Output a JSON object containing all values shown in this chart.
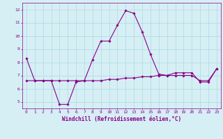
{
  "xlabel": "Windchill (Refroidissement éolien,°C)",
  "ylabel": "",
  "xlim": [
    -0.5,
    23.5
  ],
  "ylim": [
    4.5,
    12.5
  ],
  "yticks": [
    5,
    6,
    7,
    8,
    9,
    10,
    11,
    12
  ],
  "xticks": [
    0,
    1,
    2,
    3,
    4,
    5,
    6,
    7,
    8,
    9,
    10,
    11,
    12,
    13,
    14,
    15,
    16,
    17,
    18,
    19,
    20,
    21,
    22,
    23
  ],
  "line1_x": [
    0,
    1,
    2,
    3,
    4,
    5,
    6,
    7,
    8,
    9,
    10,
    11,
    12,
    13,
    14,
    15,
    16,
    17,
    18,
    19,
    20,
    21,
    22,
    23
  ],
  "line1_y": [
    8.3,
    6.6,
    6.6,
    6.6,
    4.8,
    4.8,
    6.5,
    6.6,
    8.2,
    9.6,
    9.6,
    10.8,
    11.9,
    11.7,
    10.3,
    8.6,
    7.1,
    7.0,
    7.2,
    7.2,
    7.2,
    6.5,
    6.5,
    7.5
  ],
  "line2_x": [
    0,
    1,
    2,
    3,
    4,
    5,
    6,
    7,
    8,
    9,
    10,
    11,
    12,
    13,
    14,
    15,
    16,
    17,
    18,
    19,
    20,
    21,
    22,
    23
  ],
  "line2_y": [
    6.6,
    6.6,
    6.6,
    6.6,
    6.6,
    6.6,
    6.6,
    6.6,
    6.6,
    6.6,
    6.7,
    6.7,
    6.8,
    6.8,
    6.9,
    6.9,
    7.0,
    7.0,
    7.0,
    7.0,
    7.0,
    6.6,
    6.6,
    7.5
  ],
  "bg_color": "#d6eff5",
  "grid_color": "#b0d8e0",
  "line_color": "#880088",
  "marker": "D",
  "markersize": 1.8,
  "linewidth": 0.8,
  "tick_fontsize": 4.5,
  "xlabel_fontsize": 5.5
}
